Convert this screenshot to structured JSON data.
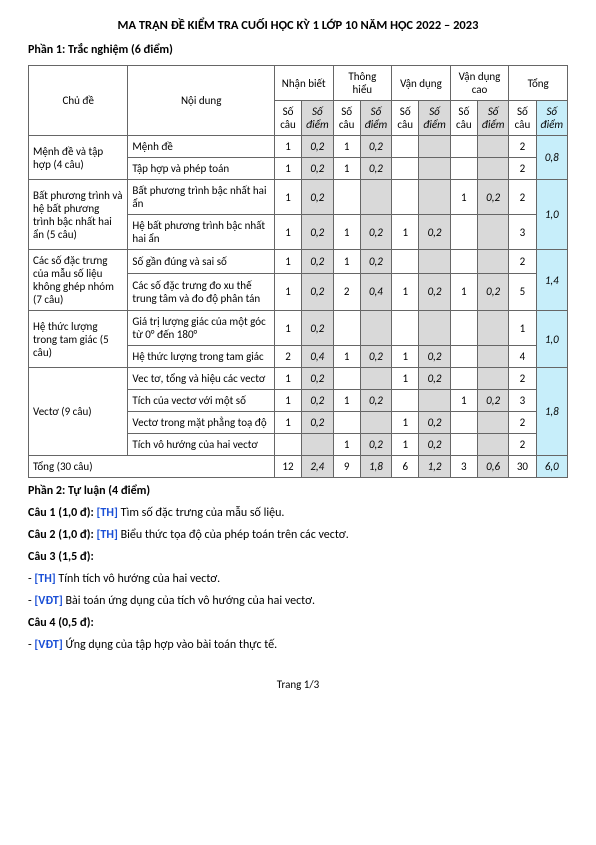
{
  "title": "MA TRẬN ĐỀ KIỂM TRA CUỐI HỌC KỲ 1 LỚP 10 NĂM HỌC 2022 – 2023",
  "part1_heading": "Phần 1: Trắc nghiệm (6 điểm)",
  "part2_heading": "Phần 2: Tự luận (4 điểm)",
  "headers": {
    "chude": "Chủ đề",
    "noidung": "Nội dung",
    "levels": [
      "Nhận biết",
      "Thông hiểu",
      "Vận dụng",
      "Vận dụng cao",
      "Tổng"
    ],
    "socau": "Số câu",
    "diem": "Số điểm"
  },
  "groups": [
    {
      "chude": "Mệnh đề và tập hợp (4 câu)",
      "rows": [
        {
          "noidung": "Mệnh đề",
          "cells": [
            "1",
            "0,2",
            "1",
            "0,2",
            "",
            "",
            "",
            "",
            "2",
            ""
          ],
          "group_tongdiem": "0,8",
          "group_rowspan": 2
        },
        {
          "noidung": "Tập hợp và phép toán",
          "cells": [
            "1",
            "0,2",
            "1",
            "0,2",
            "",
            "",
            "",
            "",
            "2",
            ""
          ]
        }
      ]
    },
    {
      "chude": "Bất phương trình và hệ bất phương trình bậc nhất hai ẩn (5 câu)",
      "rows": [
        {
          "noidung": "Bất phương trình bậc nhất hai ẩn",
          "cells": [
            "1",
            "0,2",
            "",
            "",
            "",
            "",
            "1",
            "0,2",
            "2",
            ""
          ],
          "group_tongdiem": "1,0",
          "group_rowspan": 2
        },
        {
          "noidung": "Hệ bất phương trình bậc nhất hai ẩn",
          "cells": [
            "1",
            "0,2",
            "1",
            "0,2",
            "1",
            "0,2",
            "",
            "",
            "3",
            ""
          ]
        }
      ]
    },
    {
      "chude": "Các số đặc trưng của mẫu số liệu không ghép nhóm (7 câu)",
      "rows": [
        {
          "noidung": "Số gần đúng và sai số",
          "cells": [
            "1",
            "0,2",
            "1",
            "0,2",
            "",
            "",
            "",
            "",
            "2",
            ""
          ],
          "group_tongdiem": "1,4",
          "group_rowspan": 2
        },
        {
          "noidung": "Các số đặc trưng đo xu thế trung tâm và đo độ phân tán",
          "cells": [
            "1",
            "0,2",
            "2",
            "0,4",
            "1",
            "0,2",
            "1",
            "0,2",
            "5",
            ""
          ]
        }
      ]
    },
    {
      "chude": "Hệ thức lượng trong tam giác (5 câu)",
      "rows": [
        {
          "noidung": "Giá trị lượng giác của một góc từ 0° đến 180°",
          "cells": [
            "1",
            "0,2",
            "",
            "",
            "",
            "",
            "",
            "",
            "1",
            ""
          ],
          "group_tongdiem": "1,0",
          "group_rowspan": 2
        },
        {
          "noidung": "Hệ thức lượng trong tam giác",
          "cells": [
            "2",
            "0,4",
            "1",
            "0,2",
            "1",
            "0,2",
            "",
            "",
            "4",
            ""
          ]
        }
      ]
    },
    {
      "chude": "Vectơ (9 câu)",
      "rows": [
        {
          "noidung": "Vec tơ, tổng và hiệu các vectơ",
          "cells": [
            "1",
            "0,2",
            "",
            "",
            "1",
            "0,2",
            "",
            "",
            "2",
            ""
          ],
          "group_tongdiem": "1,8",
          "group_rowspan": 4
        },
        {
          "noidung": "Tích của vectơ với một số",
          "cells": [
            "1",
            "0,2",
            "1",
            "0,2",
            "",
            "",
            "1",
            "0,2",
            "3",
            ""
          ]
        },
        {
          "noidung": "Vectơ trong mặt phẳng toạ độ",
          "cells": [
            "1",
            "0,2",
            "",
            "",
            "1",
            "0,2",
            "",
            "",
            "2",
            ""
          ]
        },
        {
          "noidung": "Tích vô hướng của hai vectơ",
          "cells": [
            "",
            "",
            "1",
            "0,2",
            "1",
            "0,2",
            "",
            "",
            "2",
            ""
          ]
        }
      ]
    }
  ],
  "total_row": {
    "label": "Tổng (30 câu)",
    "cells": [
      "12",
      "2,4",
      "9",
      "1,8",
      "6",
      "1,2",
      "3",
      "0,6",
      "30",
      "6,0"
    ]
  },
  "q1": {
    "prefix": "Câu 1 (1,0 đ): ",
    "tag": "[TH]",
    "text": " Tìm số đặc trưng của mẫu số liệu."
  },
  "q2": {
    "prefix": "Câu 2 (1,0 đ): ",
    "tag": "[TH]",
    "text": " Biểu thức tọa độ của phép toán trên các vectơ."
  },
  "q3": {
    "title": "Câu 3 (1,5 đ):",
    "a": {
      "tag": "[TH]",
      "text": " Tính tích vô hướng của hai vectơ."
    },
    "b": {
      "tag": "[VĐT]",
      "text": " Bài toán ứng dụng của tích vô hướng của hai vectơ."
    }
  },
  "q4": {
    "title": "Câu 4 (0,5 đ):",
    "a": {
      "tag": "[VĐT]",
      "text": " Ứng dụng của tập hợp vào bài toán thực tế."
    }
  },
  "footer": "Trang 1/3",
  "colors": {
    "diem_bg": "#d9d9d9",
    "tongdiem_bg": "#c7eefa",
    "link_blue": "#1a4fd6"
  }
}
